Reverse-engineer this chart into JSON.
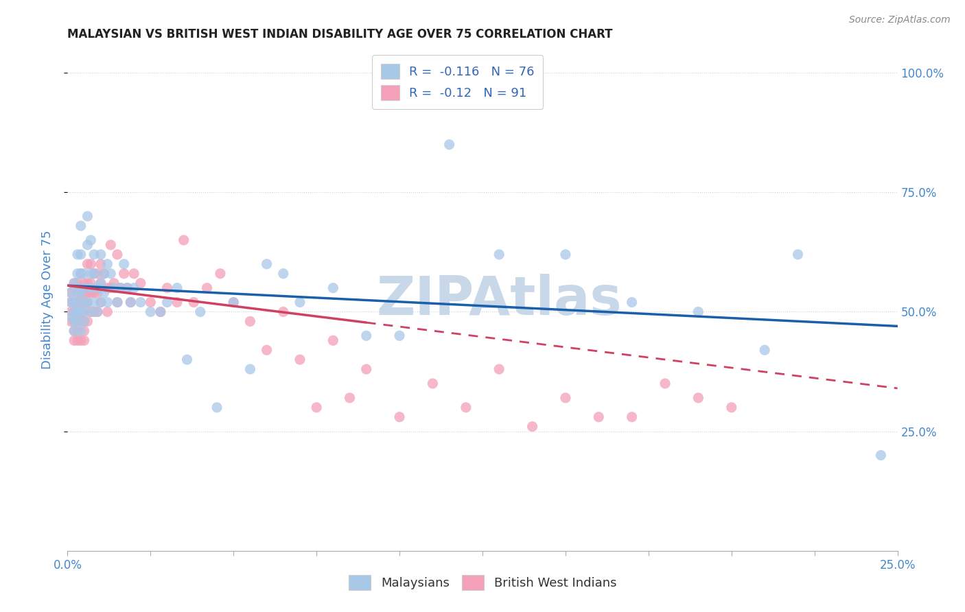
{
  "title": "MALAYSIAN VS BRITISH WEST INDIAN DISABILITY AGE OVER 75 CORRELATION CHART",
  "source": "Source: ZipAtlas.com",
  "ylabel_label": "Disability Age Over 75",
  "right_yticks": [
    "100.0%",
    "75.0%",
    "50.0%",
    "25.0%"
  ],
  "right_ytick_vals": [
    1.0,
    0.75,
    0.5,
    0.25
  ],
  "xlim": [
    0.0,
    0.25
  ],
  "ylim": [
    0.0,
    1.05
  ],
  "malaysian_R": -0.116,
  "malaysian_N": 76,
  "bwi_R": -0.12,
  "bwi_N": 91,
  "malaysian_color": "#a8c8e8",
  "bwi_color": "#f4a0b8",
  "trend_malaysian_color": "#1a5faa",
  "trend_bwi_color": "#d04060",
  "background_color": "#ffffff",
  "grid_color": "#cccccc",
  "title_color": "#222222",
  "source_color": "#888888",
  "axis_label_color": "#4488cc",
  "legend_label_color": "#3366bb",
  "watermark_color": "#c8d8e8",
  "malaysian_x": [
    0.001,
    0.001,
    0.001,
    0.002,
    0.002,
    0.002,
    0.002,
    0.002,
    0.003,
    0.003,
    0.003,
    0.003,
    0.003,
    0.003,
    0.004,
    0.004,
    0.004,
    0.004,
    0.004,
    0.004,
    0.005,
    0.005,
    0.005,
    0.005,
    0.005,
    0.006,
    0.006,
    0.006,
    0.007,
    0.007,
    0.007,
    0.007,
    0.008,
    0.008,
    0.008,
    0.009,
    0.009,
    0.01,
    0.01,
    0.01,
    0.011,
    0.011,
    0.012,
    0.012,
    0.013,
    0.014,
    0.015,
    0.016,
    0.017,
    0.018,
    0.019,
    0.02,
    0.022,
    0.025,
    0.028,
    0.03,
    0.033,
    0.036,
    0.04,
    0.045,
    0.05,
    0.055,
    0.06,
    0.065,
    0.07,
    0.08,
    0.09,
    0.1,
    0.115,
    0.13,
    0.15,
    0.17,
    0.19,
    0.21,
    0.22,
    0.245
  ],
  "malaysian_y": [
    0.54,
    0.52,
    0.49,
    0.52,
    0.5,
    0.56,
    0.48,
    0.46,
    0.52,
    0.54,
    0.5,
    0.62,
    0.58,
    0.48,
    0.54,
    0.5,
    0.62,
    0.68,
    0.58,
    0.46,
    0.52,
    0.58,
    0.5,
    0.48,
    0.55,
    0.64,
    0.7,
    0.52,
    0.58,
    0.65,
    0.55,
    0.5,
    0.58,
    0.62,
    0.52,
    0.55,
    0.5,
    0.62,
    0.56,
    0.52,
    0.58,
    0.54,
    0.6,
    0.52,
    0.58,
    0.55,
    0.52,
    0.55,
    0.6,
    0.55,
    0.52,
    0.55,
    0.52,
    0.5,
    0.5,
    0.52,
    0.55,
    0.4,
    0.5,
    0.3,
    0.52,
    0.38,
    0.6,
    0.58,
    0.52,
    0.55,
    0.45,
    0.45,
    0.85,
    0.62,
    0.62,
    0.52,
    0.5,
    0.42,
    0.62,
    0.2
  ],
  "bwi_x": [
    0.001,
    0.001,
    0.001,
    0.001,
    0.002,
    0.002,
    0.002,
    0.002,
    0.002,
    0.002,
    0.002,
    0.003,
    0.003,
    0.003,
    0.003,
    0.003,
    0.003,
    0.003,
    0.004,
    0.004,
    0.004,
    0.004,
    0.004,
    0.004,
    0.005,
    0.005,
    0.005,
    0.005,
    0.005,
    0.005,
    0.005,
    0.006,
    0.006,
    0.006,
    0.006,
    0.006,
    0.007,
    0.007,
    0.007,
    0.007,
    0.008,
    0.008,
    0.008,
    0.009,
    0.009,
    0.009,
    0.01,
    0.01,
    0.01,
    0.011,
    0.012,
    0.012,
    0.013,
    0.013,
    0.014,
    0.015,
    0.015,
    0.016,
    0.017,
    0.018,
    0.019,
    0.02,
    0.022,
    0.025,
    0.028,
    0.03,
    0.033,
    0.035,
    0.038,
    0.042,
    0.046,
    0.05,
    0.055,
    0.06,
    0.065,
    0.07,
    0.075,
    0.08,
    0.085,
    0.09,
    0.1,
    0.11,
    0.12,
    0.13,
    0.14,
    0.15,
    0.16,
    0.17,
    0.18,
    0.19,
    0.2
  ],
  "bwi_y": [
    0.54,
    0.52,
    0.5,
    0.48,
    0.55,
    0.52,
    0.5,
    0.56,
    0.48,
    0.46,
    0.44,
    0.54,
    0.52,
    0.56,
    0.5,
    0.48,
    0.46,
    0.44,
    0.58,
    0.54,
    0.52,
    0.5,
    0.48,
    0.44,
    0.56,
    0.54,
    0.52,
    0.5,
    0.48,
    0.46,
    0.44,
    0.6,
    0.56,
    0.54,
    0.52,
    0.48,
    0.6,
    0.56,
    0.54,
    0.5,
    0.58,
    0.54,
    0.5,
    0.58,
    0.54,
    0.5,
    0.6,
    0.56,
    0.52,
    0.58,
    0.55,
    0.5,
    0.64,
    0.55,
    0.56,
    0.62,
    0.52,
    0.55,
    0.58,
    0.55,
    0.52,
    0.58,
    0.56,
    0.52,
    0.5,
    0.55,
    0.52,
    0.65,
    0.52,
    0.55,
    0.58,
    0.52,
    0.48,
    0.42,
    0.5,
    0.4,
    0.3,
    0.44,
    0.32,
    0.38,
    0.28,
    0.35,
    0.3,
    0.38,
    0.26,
    0.32,
    0.28,
    0.28,
    0.35,
    0.32,
    0.3
  ],
  "trend_mal_x0": 0.0,
  "trend_mal_y0": 0.555,
  "trend_mal_x1": 0.25,
  "trend_mal_y1": 0.47,
  "trend_bwi_x0": 0.0,
  "trend_bwi_y0": 0.555,
  "trend_bwi_x1": 0.25,
  "trend_bwi_y1": 0.34
}
